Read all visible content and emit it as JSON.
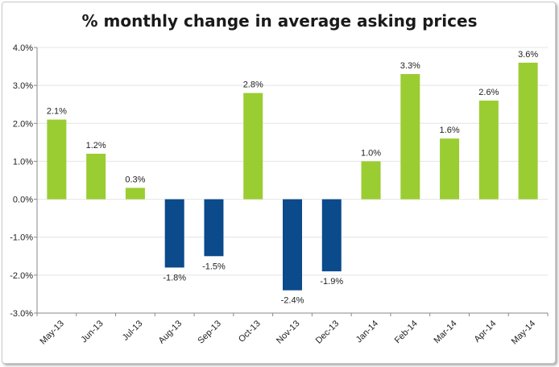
{
  "chart_data": {
    "type": "bar",
    "title": "% monthly change in average asking prices",
    "xlabel": "",
    "ylabel": "",
    "categories": [
      "May-13",
      "Jun-13",
      "Jul-13",
      "Aug-13",
      "Sep-13",
      "Oct-13",
      "Nov-13",
      "Dec-13",
      "Jan-14",
      "Feb-14",
      "Mar-14",
      "Apr-14",
      "May-14"
    ],
    "values": [
      2.1,
      1.2,
      0.3,
      -1.8,
      -1.5,
      2.8,
      -2.4,
      -1.9,
      1.0,
      3.3,
      1.6,
      2.6,
      3.6
    ],
    "data_labels": [
      "2.1%",
      "1.2%",
      "0.3%",
      "-1.8%",
      "-1.5%",
      "2.8%",
      "-2.4%",
      "-1.9%",
      "1.0%",
      "3.3%",
      "1.6%",
      "2.6%",
      "3.6%"
    ],
    "ylim": [
      -3,
      4
    ],
    "yticks": [
      4,
      3,
      2,
      1,
      0,
      -1,
      -2,
      -3
    ],
    "ytick_labels": [
      "4.0%",
      "3.0%",
      "2.0%",
      "1.0%",
      "0.0%",
      "-1.0%",
      "-2.0%",
      "-3.0%"
    ],
    "grid": true,
    "colors": {
      "positive": "#9acd32",
      "negative": "#0b4a8b",
      "grid": "#e4e4e4",
      "axis": "#888888"
    }
  }
}
